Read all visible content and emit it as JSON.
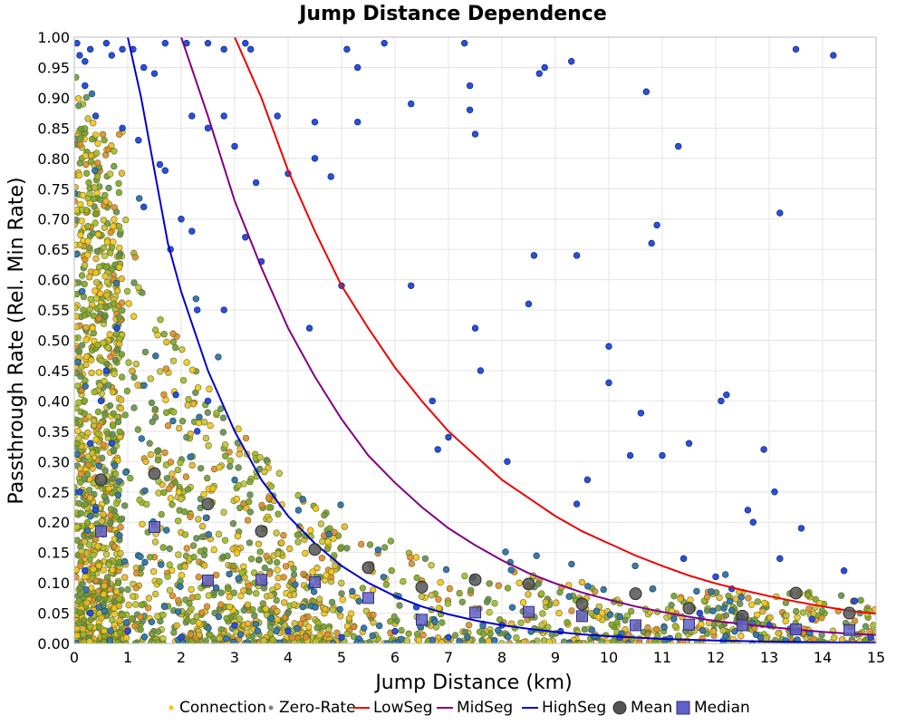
{
  "chart_data": {
    "type": "scatter",
    "title": "Jump Distance Dependence",
    "xlabel": "Jump Distance (km)",
    "ylabel": "Passthrough Rate (Rel. Min Rate)",
    "xlim": [
      0,
      15
    ],
    "ylim": [
      0,
      1
    ],
    "x_ticks": [
      0,
      1,
      2,
      3,
      4,
      5,
      6,
      7,
      8,
      9,
      10,
      11,
      12,
      13,
      14,
      15
    ],
    "y_ticks": [
      0.0,
      0.05,
      0.1,
      0.15,
      0.2,
      0.25,
      0.3,
      0.35,
      0.4,
      0.45,
      0.5,
      0.55,
      0.6,
      0.65,
      0.7,
      0.75,
      0.8,
      0.85,
      0.9,
      0.95,
      1.0
    ],
    "x_tick_labels": [
      "0",
      "1",
      "2",
      "3",
      "4",
      "5",
      "6",
      "7",
      "8",
      "9",
      "10",
      "11",
      "12",
      "13",
      "14",
      "15"
    ],
    "y_tick_labels": [
      "0.00",
      "0.05",
      "0.10",
      "0.15",
      "0.20",
      "0.25",
      "0.30",
      "0.35",
      "0.40",
      "0.45",
      "0.50",
      "0.55",
      "0.60",
      "0.65",
      "0.70",
      "0.75",
      "0.80",
      "0.85",
      "0.90",
      "0.95",
      "1.00"
    ],
    "grid": true,
    "legend_position": "bottom",
    "colors": {
      "connection_palette": [
        "#f5c518",
        "#e8b72a",
        "#c6c23a",
        "#9cba2c",
        "#7aa62a",
        "#6b9c3a",
        "#5b8e5a",
        "#e08a2c"
      ],
      "connection_outline": "#6a6a20",
      "zero_rate": "#808080",
      "blue_points": "#2a4fd8",
      "teal_points": "#3a7aa8",
      "low_seg": "#ee0000",
      "mid_seg": "#800080",
      "high_seg": "#0000cc",
      "mean": "#555555",
      "median": "#6060c8"
    },
    "curves": [
      {
        "name": "LowSeg",
        "points": [
          [
            3.0,
            1.0
          ],
          [
            3.5,
            0.9
          ],
          [
            4,
            0.78
          ],
          [
            4.5,
            0.68
          ],
          [
            5,
            0.59
          ],
          [
            5.5,
            0.52
          ],
          [
            6,
            0.455
          ],
          [
            6.5,
            0.4
          ],
          [
            7,
            0.35
          ],
          [
            7.5,
            0.31
          ],
          [
            8,
            0.27
          ],
          [
            8.5,
            0.24
          ],
          [
            9,
            0.21
          ],
          [
            9.5,
            0.185
          ],
          [
            10,
            0.165
          ],
          [
            10.5,
            0.145
          ],
          [
            11,
            0.128
          ],
          [
            11.5,
            0.112
          ],
          [
            12,
            0.099
          ],
          [
            12.5,
            0.088
          ],
          [
            13,
            0.078
          ],
          [
            13.5,
            0.069
          ],
          [
            14,
            0.061
          ],
          [
            14.5,
            0.054
          ],
          [
            15,
            0.049
          ]
        ]
      },
      {
        "name": "MidSeg",
        "points": [
          [
            2.0,
            1.0
          ],
          [
            2.5,
            0.87
          ],
          [
            3,
            0.73
          ],
          [
            3.5,
            0.62
          ],
          [
            4,
            0.52
          ],
          [
            4.5,
            0.44
          ],
          [
            5,
            0.37
          ],
          [
            5.5,
            0.31
          ],
          [
            6,
            0.265
          ],
          [
            6.5,
            0.225
          ],
          [
            7,
            0.19
          ],
          [
            7.5,
            0.162
          ],
          [
            8,
            0.137
          ],
          [
            8.5,
            0.116
          ],
          [
            9,
            0.099
          ],
          [
            9.5,
            0.084
          ],
          [
            10,
            0.072
          ],
          [
            10.5,
            0.061
          ],
          [
            11,
            0.052
          ],
          [
            11.5,
            0.044
          ],
          [
            12,
            0.037
          ],
          [
            12.5,
            0.032
          ],
          [
            13,
            0.027
          ],
          [
            13.5,
            0.023
          ],
          [
            14,
            0.019
          ],
          [
            14.5,
            0.016
          ],
          [
            15,
            0.014
          ]
        ]
      },
      {
        "name": "HighSeg",
        "points": [
          [
            1.0,
            1.0
          ],
          [
            1.25,
            0.9
          ],
          [
            1.5,
            0.78
          ],
          [
            1.75,
            0.66
          ],
          [
            2,
            0.58
          ],
          [
            2.5,
            0.45
          ],
          [
            3,
            0.35
          ],
          [
            3.5,
            0.27
          ],
          [
            4,
            0.21
          ],
          [
            4.5,
            0.165
          ],
          [
            5,
            0.128
          ],
          [
            5.5,
            0.1
          ],
          [
            6,
            0.078
          ],
          [
            6.5,
            0.061
          ],
          [
            7,
            0.048
          ],
          [
            7.5,
            0.038
          ],
          [
            8,
            0.03
          ],
          [
            8.5,
            0.024
          ],
          [
            9,
            0.019
          ],
          [
            9.5,
            0.015
          ],
          [
            10,
            0.012
          ],
          [
            11,
            0.0075
          ],
          [
            12,
            0.0048
          ],
          [
            13,
            0.003
          ],
          [
            14,
            0.002
          ],
          [
            15,
            0.0013
          ]
        ]
      }
    ],
    "mean": {
      "name": "Mean",
      "points": [
        [
          0.5,
          0.27
        ],
        [
          1.5,
          0.28
        ],
        [
          2.5,
          0.23
        ],
        [
          3.5,
          0.185
        ],
        [
          4.5,
          0.155
        ],
        [
          5.5,
          0.125
        ],
        [
          6.5,
          0.093
        ],
        [
          7.5,
          0.105
        ],
        [
          8.5,
          0.098
        ],
        [
          9.5,
          0.065
        ],
        [
          10.5,
          0.082
        ],
        [
          11.5,
          0.058
        ],
        [
          12.5,
          0.045
        ],
        [
          13.5,
          0.083
        ],
        [
          14.5,
          0.05
        ]
      ]
    },
    "median": {
      "name": "Median",
      "points": [
        [
          0.5,
          0.185
        ],
        [
          1.5,
          0.192
        ],
        [
          2.5,
          0.104
        ],
        [
          3.5,
          0.105
        ],
        [
          4.5,
          0.101
        ],
        [
          5.5,
          0.075
        ],
        [
          6.5,
          0.039
        ],
        [
          7.5,
          0.051
        ],
        [
          8.5,
          0.052
        ],
        [
          9.5,
          0.045
        ],
        [
          10.5,
          0.03
        ],
        [
          11.5,
          0.031
        ],
        [
          12.5,
          0.03
        ],
        [
          13.5,
          0.023
        ],
        [
          14.5,
          0.022
        ]
      ]
    },
    "blue_scatter": [
      [
        0.05,
        0.99
      ],
      [
        0.1,
        0.97
      ],
      [
        0.2,
        0.96
      ],
      [
        0.3,
        0.98
      ],
      [
        0.2,
        0.92
      ],
      [
        0.4,
        0.87
      ],
      [
        0.6,
        0.99
      ],
      [
        0.7,
        0.97
      ],
      [
        0.9,
        0.98
      ],
      [
        1.1,
        0.98
      ],
      [
        1.3,
        0.95
      ],
      [
        1.5,
        0.94
      ],
      [
        1.7,
        0.99
      ],
      [
        2.1,
        0.99
      ],
      [
        2.5,
        0.99
      ],
      [
        2.8,
        0.98
      ],
      [
        3.2,
        0.99
      ],
      [
        3.3,
        0.98
      ],
      [
        0.9,
        0.85
      ],
      [
        1.2,
        0.83
      ],
      [
        1.6,
        0.79
      ],
      [
        1.7,
        0.78
      ],
      [
        2.2,
        0.87
      ],
      [
        2.5,
        0.85
      ],
      [
        2.8,
        0.87
      ],
      [
        3.0,
        0.82
      ],
      [
        3.4,
        0.76
      ],
      [
        3.8,
        0.87
      ],
      [
        4.0,
        0.775
      ],
      [
        4.5,
        0.86
      ],
      [
        4.5,
        0.8
      ],
      [
        4.8,
        0.77
      ],
      [
        5.3,
        0.86
      ],
      [
        5.3,
        0.95
      ],
      [
        5.1,
        0.98
      ],
      [
        5.8,
        0.99
      ],
      [
        6.3,
        0.89
      ],
      [
        7.3,
        0.99
      ],
      [
        7.4,
        0.92
      ],
      [
        7.4,
        0.88
      ],
      [
        7.5,
        0.84
      ],
      [
        8.7,
        0.94
      ],
      [
        8.8,
        0.95
      ],
      [
        9.3,
        0.96
      ],
      [
        10.7,
        0.91
      ],
      [
        11.3,
        0.82
      ],
      [
        13.5,
        0.98
      ],
      [
        14.2,
        0.97
      ],
      [
        1.3,
        0.72
      ],
      [
        1.8,
        0.65
      ],
      [
        2.0,
        0.7
      ],
      [
        2.2,
        0.68
      ],
      [
        3.2,
        0.67
      ],
      [
        3.5,
        0.63
      ],
      [
        2.8,
        0.55
      ],
      [
        2.3,
        0.55
      ],
      [
        0.8,
        0.52
      ],
      [
        0.6,
        0.45
      ],
      [
        0.5,
        0.4
      ],
      [
        0.3,
        0.33
      ],
      [
        0.7,
        0.33
      ],
      [
        1.9,
        0.41
      ],
      [
        2.3,
        0.35
      ],
      [
        2.5,
        0.4
      ],
      [
        4.4,
        0.52
      ],
      [
        5.0,
        0.59
      ],
      [
        6.3,
        0.59
      ],
      [
        7.5,
        0.52
      ],
      [
        7.6,
        0.45
      ],
      [
        6.7,
        0.4
      ],
      [
        8.5,
        0.56
      ],
      [
        8.6,
        0.64
      ],
      [
        9.4,
        0.64
      ],
      [
        10.0,
        0.49
      ],
      [
        10.0,
        0.43
      ],
      [
        10.8,
        0.66
      ],
      [
        10.9,
        0.69
      ],
      [
        12.1,
        0.4
      ],
      [
        12.2,
        0.41
      ],
      [
        13.2,
        0.71
      ],
      [
        12.9,
        0.32
      ],
      [
        13.1,
        0.25
      ],
      [
        10.4,
        0.31
      ],
      [
        11.0,
        0.31
      ],
      [
        11.5,
        0.33
      ],
      [
        10.6,
        0.38
      ],
      [
        9.6,
        0.27
      ],
      [
        9.4,
        0.23
      ],
      [
        8.1,
        0.3
      ],
      [
        7.0,
        0.34
      ],
      [
        6.8,
        0.32
      ],
      [
        12.6,
        0.22
      ],
      [
        12.7,
        0.2
      ],
      [
        13.6,
        0.19
      ],
      [
        14.4,
        0.12
      ],
      [
        11.4,
        0.14
      ],
      [
        12.0,
        0.11
      ],
      [
        12.3,
        0.09
      ],
      [
        13.2,
        0.14
      ],
      [
        14.6,
        0.07
      ],
      [
        9.1,
        0.02
      ],
      [
        10.2,
        0.01
      ],
      [
        11.7,
        0.05
      ],
      [
        3.0,
        0.03
      ],
      [
        4.0,
        0.02
      ],
      [
        5.0,
        0.01
      ],
      [
        6.0,
        0.02
      ],
      [
        7.0,
        0.01
      ],
      [
        8.0,
        0.03
      ],
      [
        2.0,
        0.01
      ],
      [
        1.0,
        0.02
      ],
      [
        0.3,
        0.05
      ],
      [
        0.2,
        0.12
      ],
      [
        0.1,
        0.25
      ],
      [
        0.4,
        0.22
      ],
      [
        13.8,
        0.04
      ],
      [
        14.9,
        0.01
      ],
      [
        13.0,
        0.03
      ],
      [
        6.4,
        0.06
      ]
    ],
    "legend": [
      {
        "key": "connection",
        "label": "Connection"
      },
      {
        "key": "zero_rate",
        "label": "Zero-Rate"
      },
      {
        "key": "low_seg",
        "label": "LowSeg"
      },
      {
        "key": "mid_seg",
        "label": "MidSeg"
      },
      {
        "key": "high_seg",
        "label": "HighSeg"
      },
      {
        "key": "mean",
        "label": "Mean"
      },
      {
        "key": "median",
        "label": "Median"
      }
    ],
    "random_cloud": {
      "connection_count": 2200,
      "seed": 7
    }
  }
}
